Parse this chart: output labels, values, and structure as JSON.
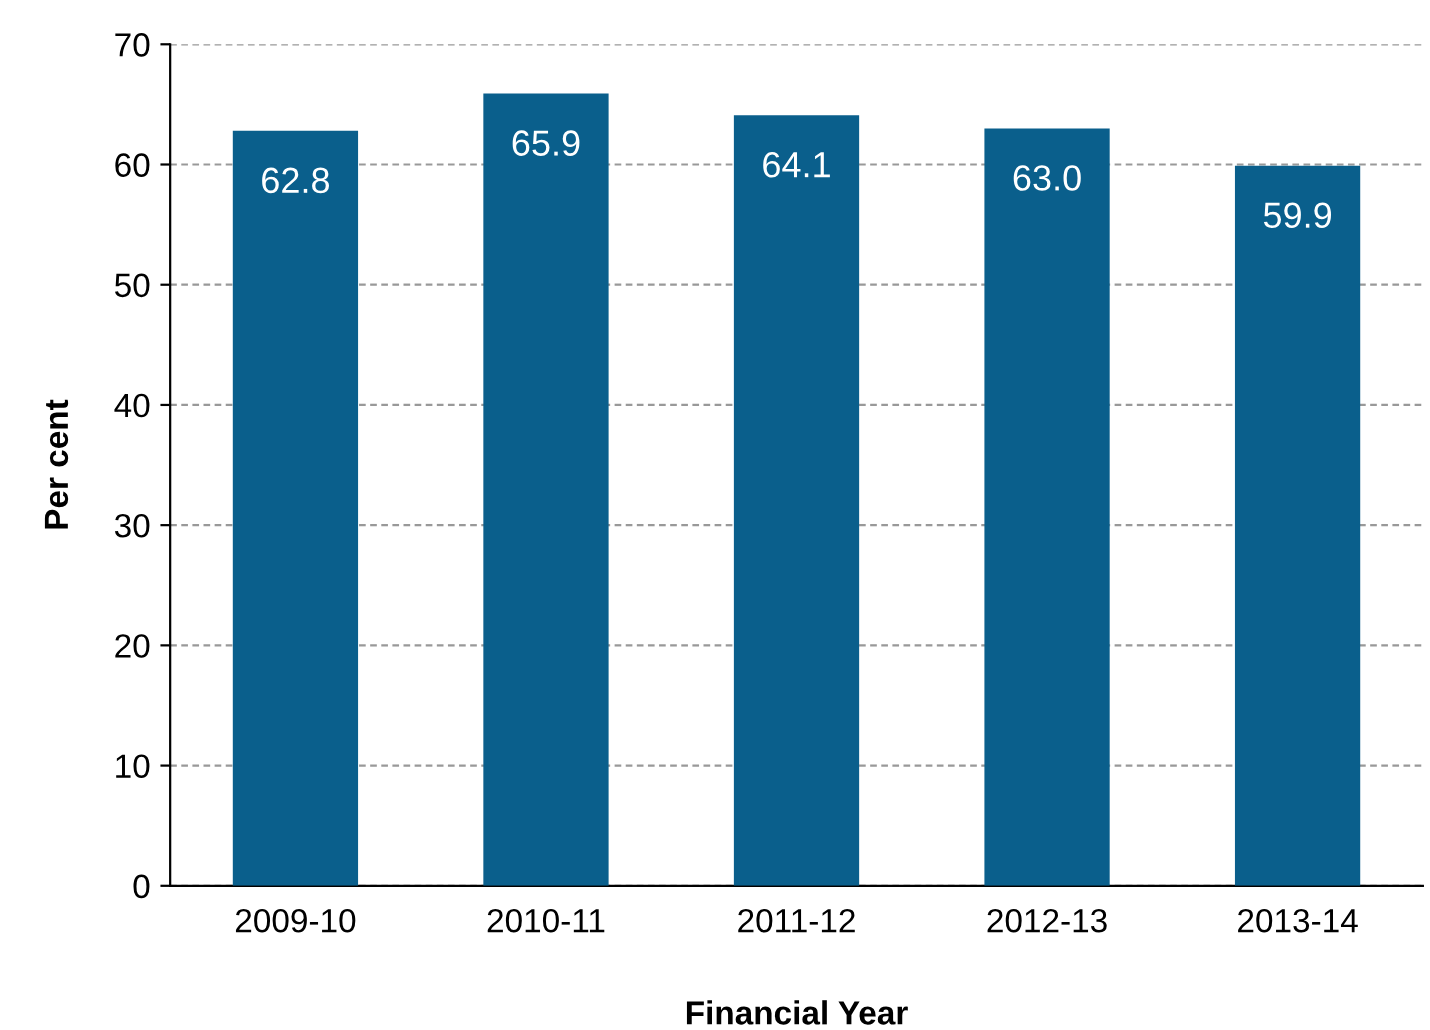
{
  "chart_data": {
    "type": "bar",
    "xlabel": "Financial Year",
    "ylabel": "Per cent",
    "categories": [
      "2009-10",
      "2010-11",
      "2011-12",
      "2012-13",
      "2013-14"
    ],
    "values": [
      62.8,
      65.9,
      64.1,
      63.0,
      59.9
    ],
    "value_labels": [
      "62.8",
      "65.9",
      "64.1",
      "63.0",
      "59.9"
    ],
    "color": "#0a5f8c",
    "ylim": [
      0,
      70
    ],
    "yticks": [
      0,
      10,
      20,
      30,
      40,
      50,
      60,
      70
    ],
    "grid": "y",
    "line_style": "dashed"
  }
}
